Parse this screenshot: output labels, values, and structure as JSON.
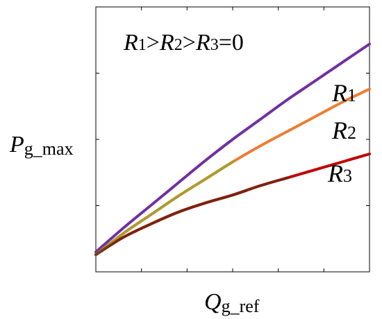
{
  "chart_data": {
    "type": "line",
    "title": "",
    "xlabel_main": "Q",
    "xlabel_sub": "g_ref",
    "ylabel_main": "P",
    "ylabel_sub": "g_max",
    "xlim": [
      0,
      1
    ],
    "ylim": [
      0,
      1
    ],
    "grid": false,
    "annotation": [
      {
        "text": "R",
        "sub": "1"
      },
      {
        "text": ">"
      },
      {
        "text": "R",
        "sub": "2"
      },
      {
        "text": ">"
      },
      {
        "text": "R",
        "sub": "3"
      },
      {
        "text": "=0"
      }
    ],
    "series": [
      {
        "name": "R",
        "name_sub": "1",
        "color": "#7030A0",
        "x": [
          0,
          0.1,
          0.2,
          0.3,
          0.4,
          0.5,
          0.6,
          0.7,
          0.8,
          0.9,
          1.0
        ],
        "y": [
          0.075,
          0.165,
          0.25,
          0.335,
          0.42,
          0.5,
          0.575,
          0.65,
          0.72,
          0.79,
          0.86
        ]
      },
      {
        "name": "R",
        "name_sub": "2",
        "color": "#ED7D31",
        "x": [
          0,
          0.1,
          0.2,
          0.3,
          0.4,
          0.5,
          0.6,
          0.7,
          0.8,
          0.9,
          1.0
        ],
        "y": [
          0.065,
          0.145,
          0.215,
          0.285,
          0.35,
          0.415,
          0.475,
          0.53,
          0.585,
          0.64,
          0.69
        ]
      },
      {
        "name": "R",
        "name_sub": "3",
        "color": "#C00000",
        "x": [
          0,
          0.1,
          0.2,
          0.3,
          0.4,
          0.5,
          0.6,
          0.7,
          0.8,
          0.9,
          1.0
        ],
        "y": [
          0.065,
          0.13,
          0.18,
          0.225,
          0.26,
          0.29,
          0.325,
          0.355,
          0.385,
          0.415,
          0.445
        ]
      }
    ],
    "overlay_color": "#A0A030",
    "overlay_dark_color": "#6B2A10"
  }
}
